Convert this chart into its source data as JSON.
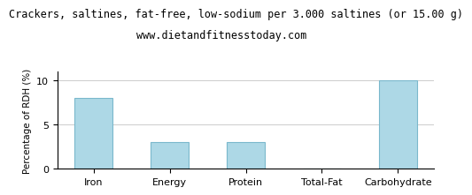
{
  "title": "Crackers, saltines, fat-free, low-sodium per 3.000 saltines (or 15.00 g)",
  "subtitle": "www.dietandfitnesstoday.com",
  "categories": [
    "Iron",
    "Energy",
    "Protein",
    "Total-Fat",
    "Carbohydrate"
  ],
  "values": [
    8.0,
    3.0,
    3.0,
    0.0,
    10.0
  ],
  "bar_color": "#add8e6",
  "bar_edge_color": "#7ab8cc",
  "ylabel": "Percentage of RDH (%)",
  "ylim": [
    0,
    11
  ],
  "yticks": [
    0,
    5,
    10
  ],
  "background_color": "#ffffff",
  "grid_color": "#cccccc",
  "title_fontsize": 8.5,
  "subtitle_fontsize": 8.5,
  "ylabel_fontsize": 7.5,
  "tick_fontsize": 8
}
